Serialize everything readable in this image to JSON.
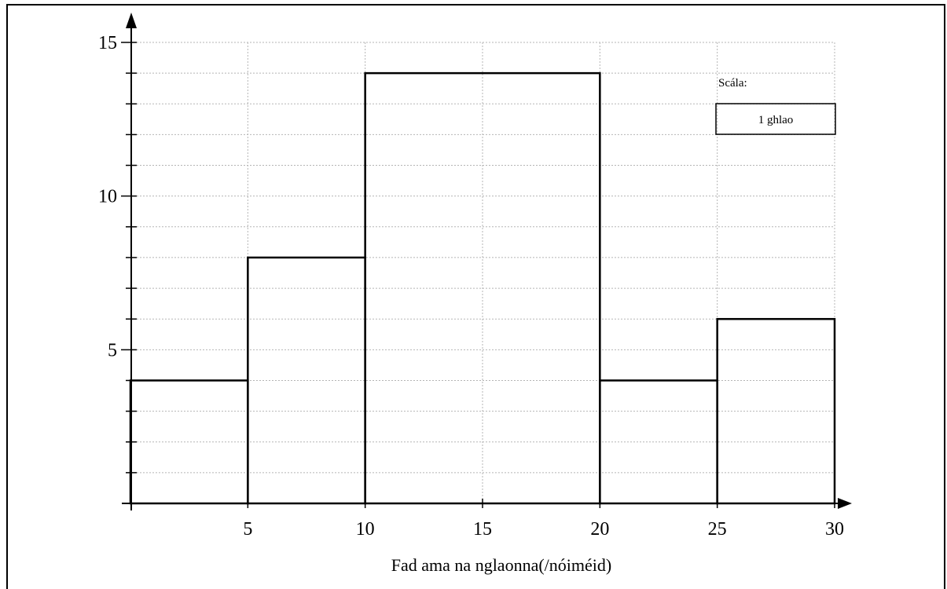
{
  "chart_data": {
    "type": "histogram",
    "xlabel": "Fad ama na nglaonna(/nóiméid)",
    "ylabel": "",
    "xlim": [
      0,
      30
    ],
    "ylim": [
      0,
      15
    ],
    "x_ticks": [
      5,
      10,
      15,
      20,
      25,
      30
    ],
    "y_ticks": [
      5,
      10,
      15
    ],
    "grid": true,
    "bins": [
      {
        "start": 0,
        "end": 5,
        "height": 4
      },
      {
        "start": 5,
        "end": 10,
        "height": 8
      },
      {
        "start": 10,
        "end": 20,
        "height": 14
      },
      {
        "start": 20,
        "end": 25,
        "height": 4
      },
      {
        "start": 25,
        "end": 30,
        "height": 6
      }
    ],
    "scale_key": {
      "title": "Scála:",
      "label": "1 ghlao"
    }
  }
}
